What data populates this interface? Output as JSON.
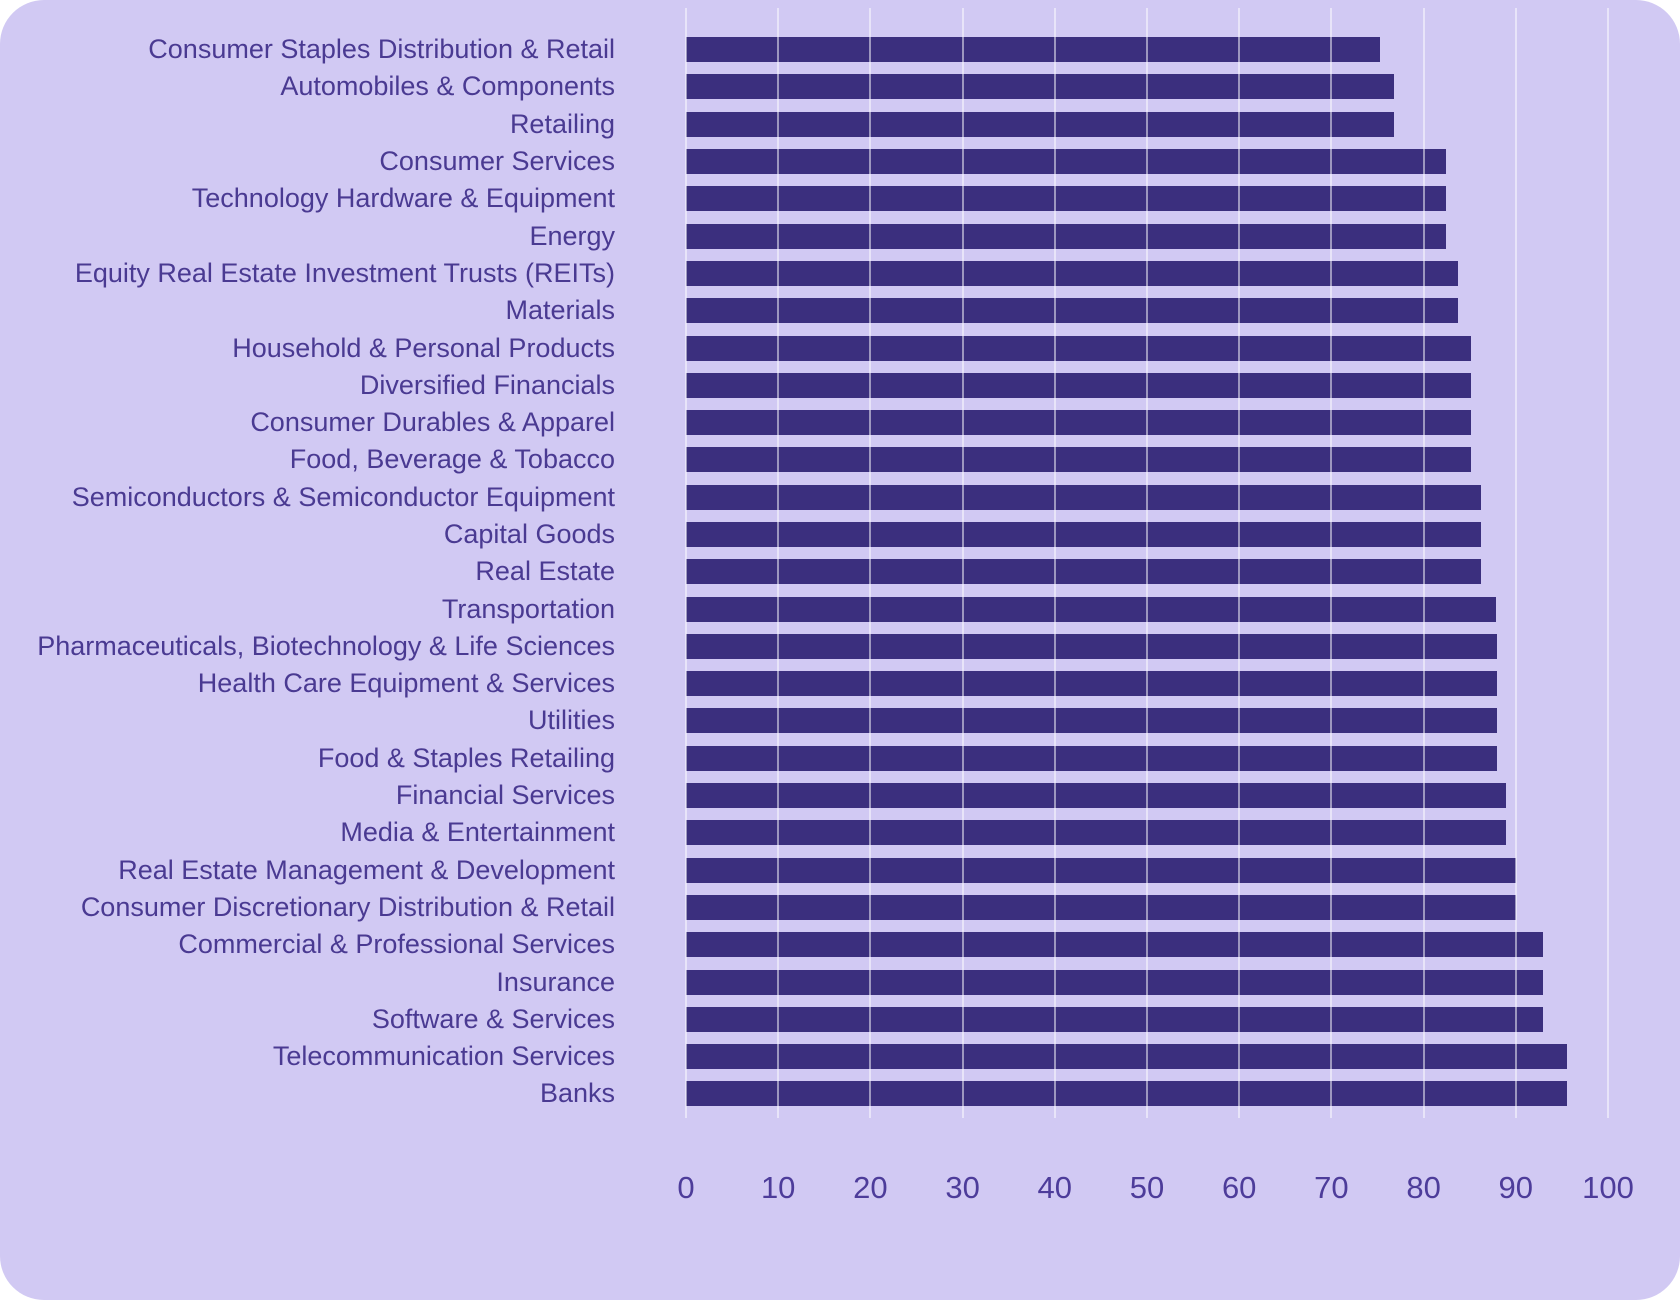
{
  "chart_data": {
    "type": "bar",
    "orientation": "horizontal",
    "title": "",
    "xlabel": "",
    "ylabel": "",
    "xlim": [
      0,
      100
    ],
    "x_ticks": [
      0,
      10,
      20,
      30,
      40,
      50,
      60,
      70,
      80,
      90,
      100
    ],
    "grid": "vertical gridlines drawn over bars",
    "legend": "none",
    "categories": [
      "Consumer Staples Distribution & Retail",
      "Automobiles & Components",
      "Retailing",
      "Consumer Services",
      "Technology Hardware & Equipment",
      "Energy",
      "Equity Real Estate Investment Trusts (REITs)",
      "Materials",
      "Household & Personal Products",
      "Diversified Financials",
      "Consumer Durables & Apparel",
      "Food, Beverage & Tobacco",
      "Semiconductors & Semiconductor Equipment",
      "Capital Goods",
      "Real Estate",
      "Transportation",
      "Pharmaceuticals, Biotechnology & Life Sciences",
      "Health Care Equipment & Services",
      "Utilities",
      "Food & Staples Retailing",
      "Financial Services",
      "Media & Entertainment",
      "Real Estate Management & Development",
      "Consumer Discretionary Distribution & Retail",
      "Commercial & Professional Services",
      "Insurance",
      "Software & Services",
      "Telecommunication Services",
      "Banks"
    ],
    "values": [
      75.3,
      76.8,
      76.8,
      82.4,
      82.4,
      82.4,
      83.7,
      83.7,
      85.1,
      85.1,
      85.1,
      85.1,
      86.2,
      86.2,
      86.2,
      87.9,
      88.0,
      88.0,
      88.0,
      88.0,
      88.9,
      88.9,
      90.0,
      90.0,
      92.9,
      92.9,
      92.9,
      95.5,
      95.5
    ]
  },
  "colors": {
    "card_background": "#d1c9f3",
    "bar": "#3b2f7e",
    "gridline": "rgba(255,255,255,0.5)",
    "category_label": "#4a3a92",
    "tick_label": "#4d3c9a"
  }
}
